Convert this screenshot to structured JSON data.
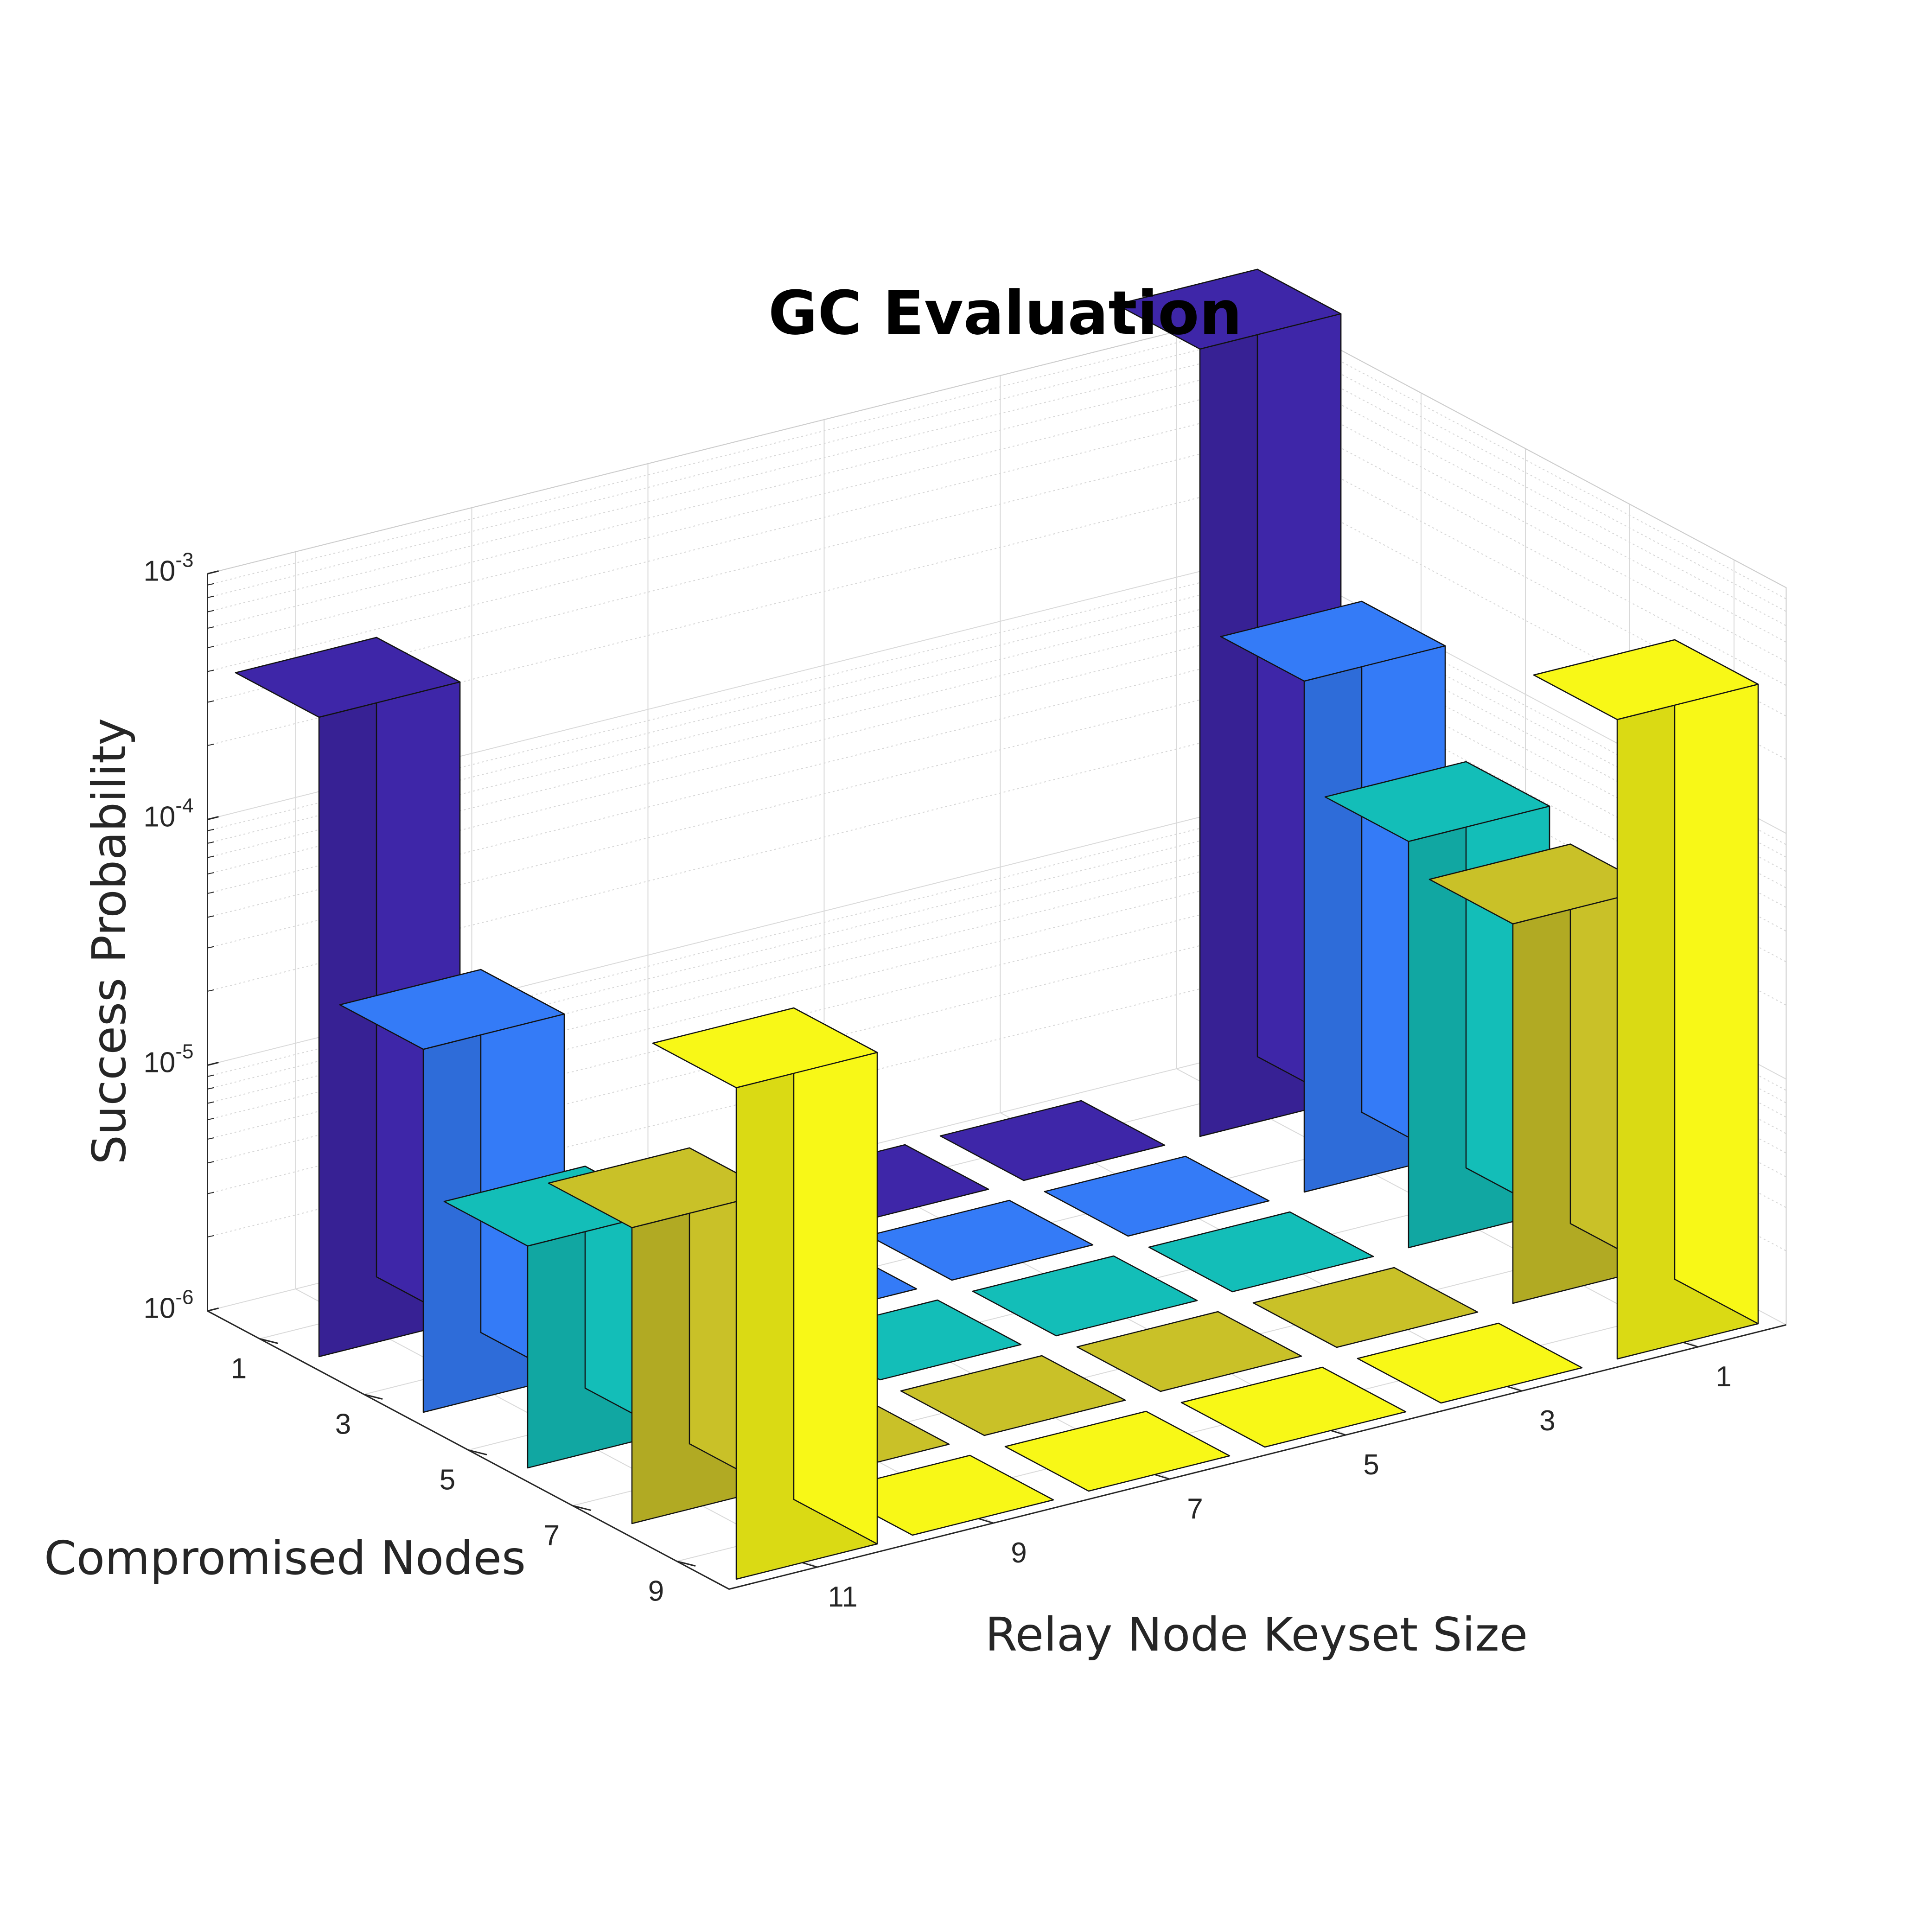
{
  "chart_data": {
    "type": "bar3d",
    "title": "GC Evaluation",
    "xlabel": "Relay Node Keyset Size",
    "ylabel": "Compromised Nodes",
    "zlabel": "Success Probability",
    "zscale": "log",
    "zlim": [
      1e-06,
      0.001
    ],
    "z_ticks": [
      {
        "base": "10",
        "exp": "-6"
      },
      {
        "base": "10",
        "exp": "-5"
      },
      {
        "base": "10",
        "exp": "-4"
      },
      {
        "base": "10",
        "exp": "-3"
      }
    ],
    "keyset_sizes": [
      "1",
      "3",
      "5",
      "7",
      "9",
      "11"
    ],
    "compromised_nodes": [
      "1",
      "3",
      "5",
      "7",
      "9"
    ],
    "grid": true,
    "series": [
      {
        "compromised_nodes": "1",
        "color": "#3e26a8",
        "values": [
          0.0016,
          1e-06,
          1e-06,
          1e-06,
          1e-06,
          0.0004
        ]
      },
      {
        "compromised_nodes": "3",
        "color": "#347bf7",
        "values": [
          0.00012,
          1e-06,
          1e-06,
          1e-06,
          1e-06,
          3e-05
        ]
      },
      {
        "compromised_nodes": "5",
        "color": "#13beb8",
        "values": [
          4.5e-05,
          1e-06,
          1e-06,
          1e-06,
          1e-06,
          8e-06
        ]
      },
      {
        "compromised_nodes": "7",
        "color": "#c9c128",
        "values": [
          3.5e-05,
          1e-06,
          1e-06,
          1e-06,
          1e-06,
          1.6e-05
        ]
      },
      {
        "compromised_nodes": "9",
        "color": "#f8f817",
        "values": [
          0.0004,
          1e-06,
          1e-06,
          1e-06,
          1e-06,
          0.0001
        ]
      }
    ]
  }
}
